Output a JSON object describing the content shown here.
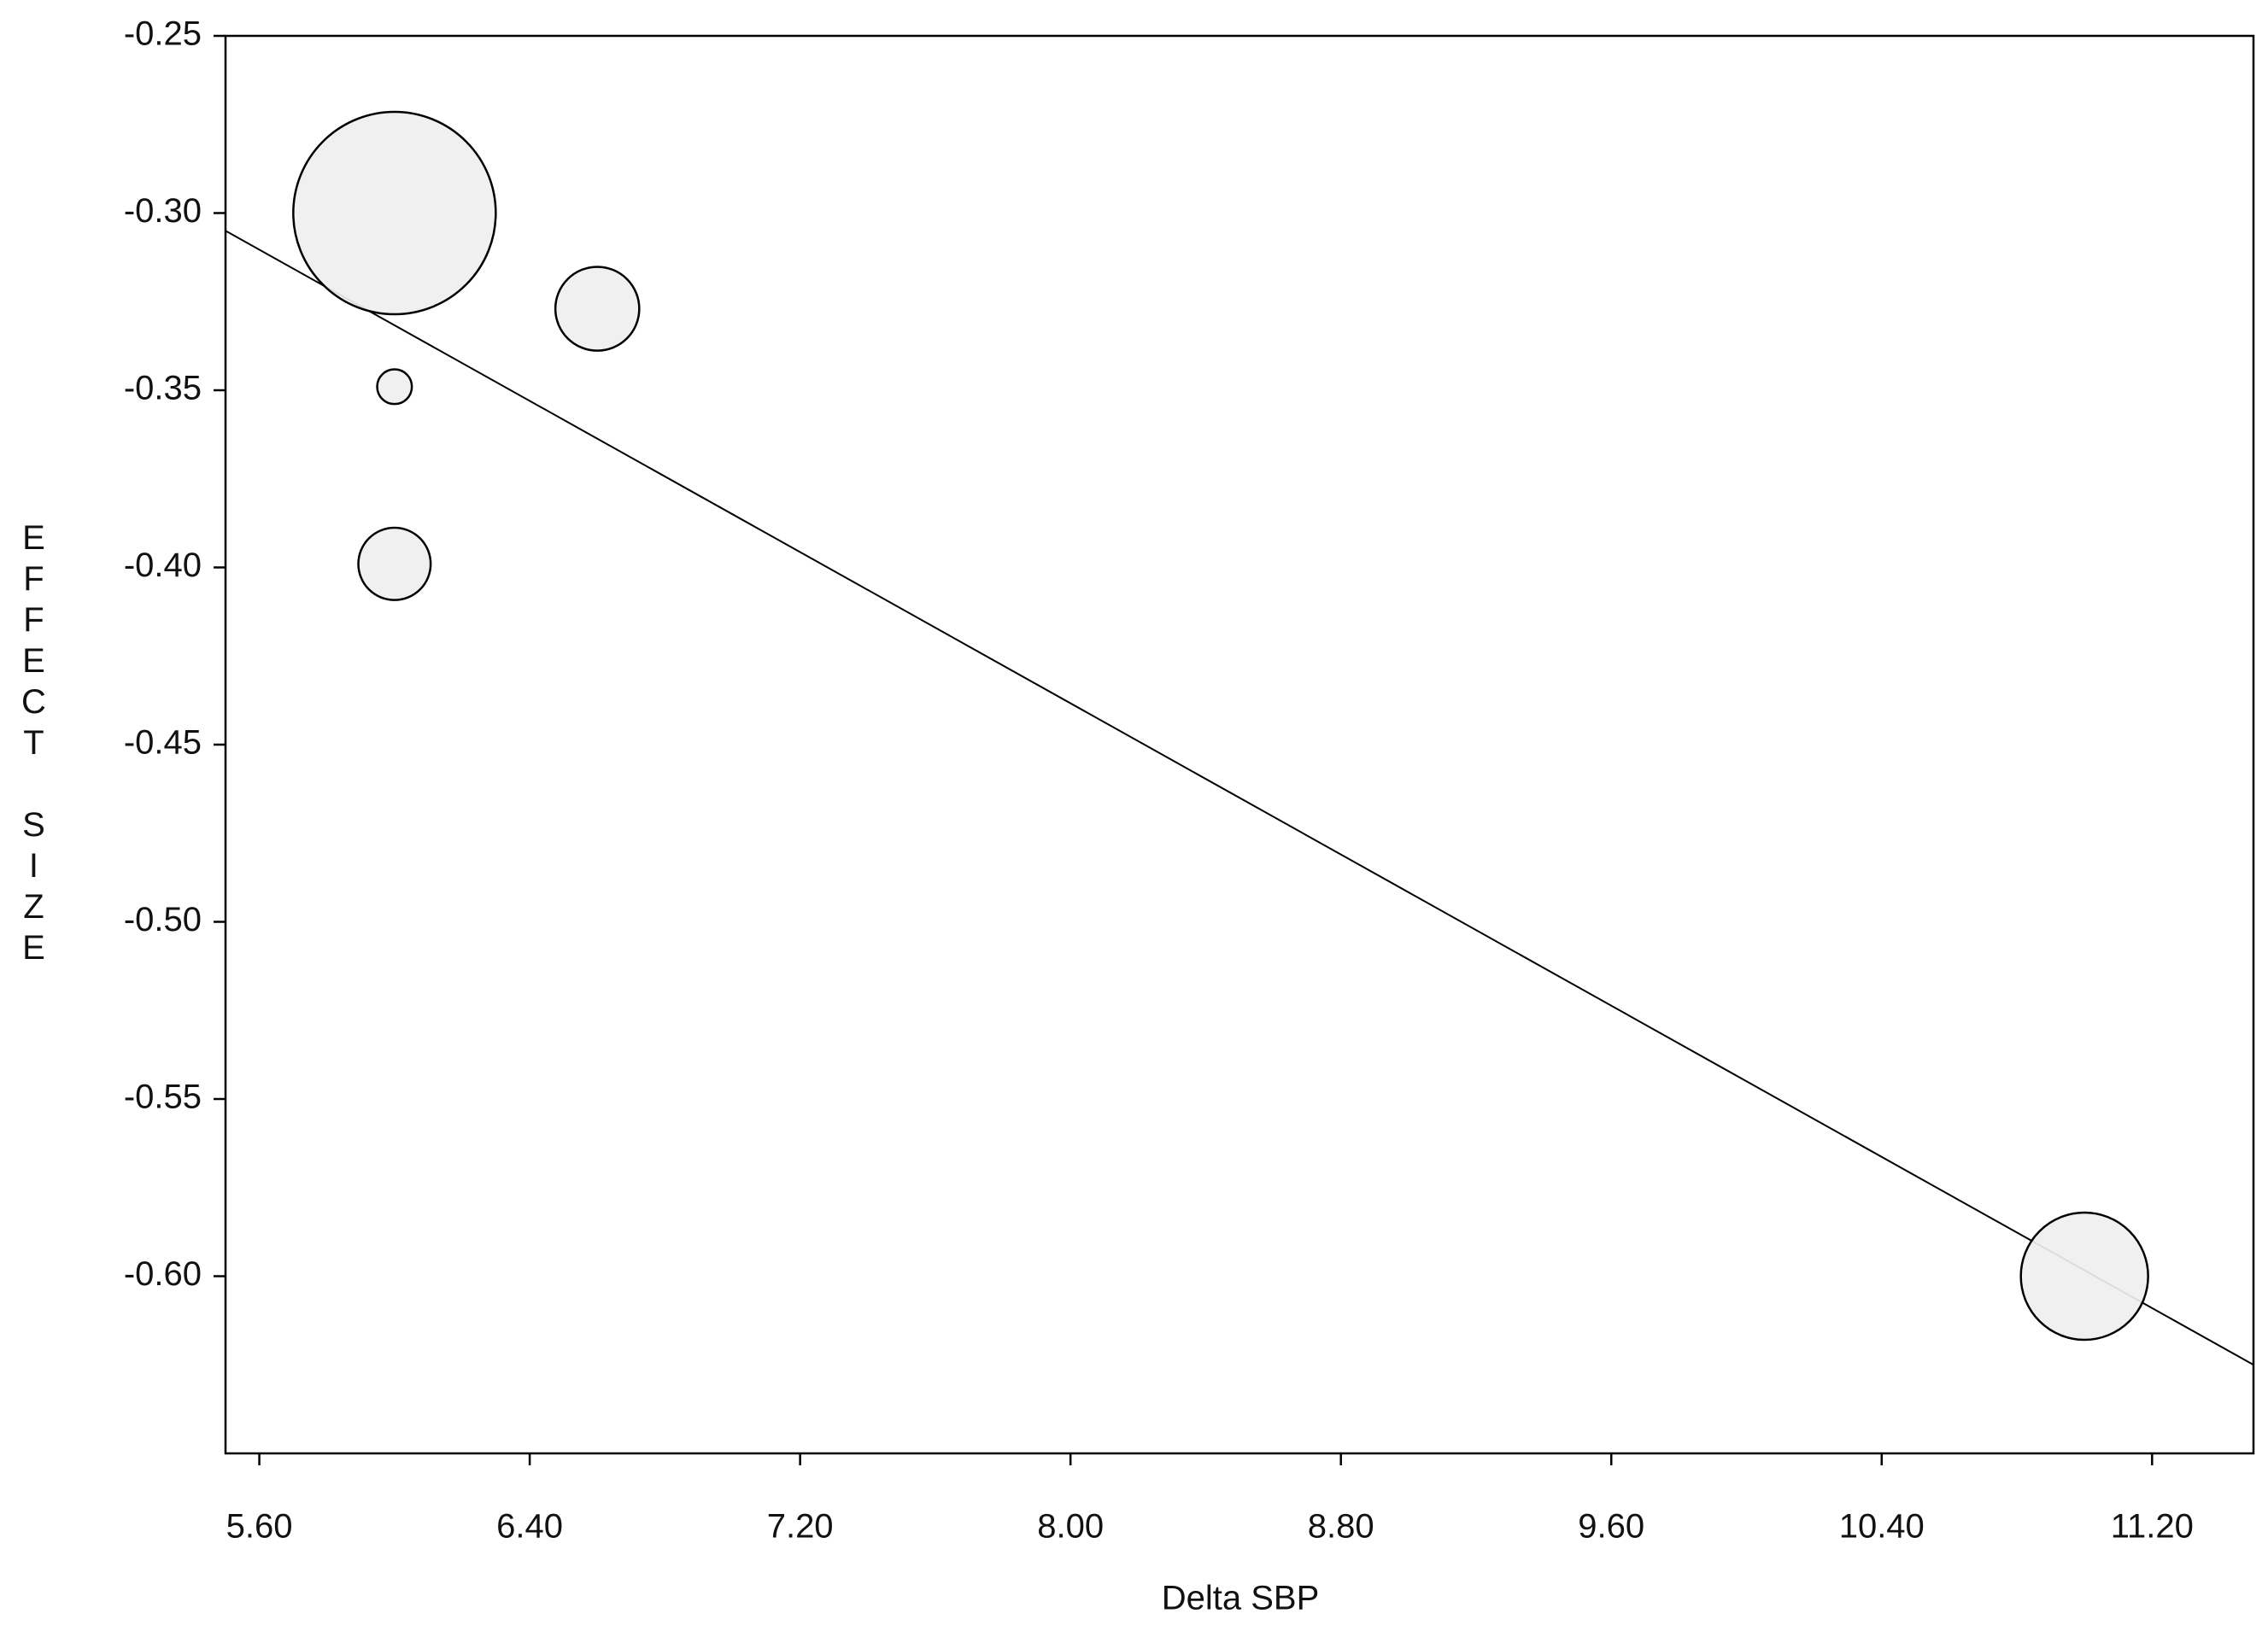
{
  "chart_data": {
    "type": "bubble",
    "x_label": "Delta SBP",
    "y_label": "EFFECT SIZE",
    "x": [
      6.0,
      6.6,
      6.0,
      6.0,
      11.0
    ],
    "values": [
      -0.3,
      -0.327,
      -0.349,
      -0.399,
      -0.6
    ],
    "sizes": [
      4900,
      841,
      144,
      625,
      1936
    ],
    "color": "#efefef",
    "regression_line": {
      "x": [
        5.5,
        11.5
      ],
      "y": [
        -0.305,
        -0.625
      ]
    },
    "xlim": [
      5.5,
      11.5
    ],
    "ylim": [
      -0.65,
      -0.25
    ],
    "xticks": [
      {
        "value": 5.6,
        "label": "5.60"
      },
      {
        "value": 6.4,
        "label": "6.40"
      },
      {
        "value": 7.2,
        "label": "7.20"
      },
      {
        "value": 8.0,
        "label": "8.00"
      },
      {
        "value": 8.8,
        "label": "8.80"
      },
      {
        "value": 9.6,
        "label": "9.60"
      },
      {
        "value": 10.4,
        "label": "10.40"
      },
      {
        "value": 11.2,
        "label": "11.20"
      }
    ],
    "yticks": [
      -0.25,
      {
        "value": -0.3,
        "label": "-0.30"
      },
      -0.35,
      {
        "value": -0.4,
        "label": "-0.40"
      },
      -0.45,
      {
        "value": -0.5,
        "label": "-0.50"
      },
      -0.55,
      {
        "value": -0.6,
        "label": "-0.60"
      }
    ],
    "grid": false
  }
}
